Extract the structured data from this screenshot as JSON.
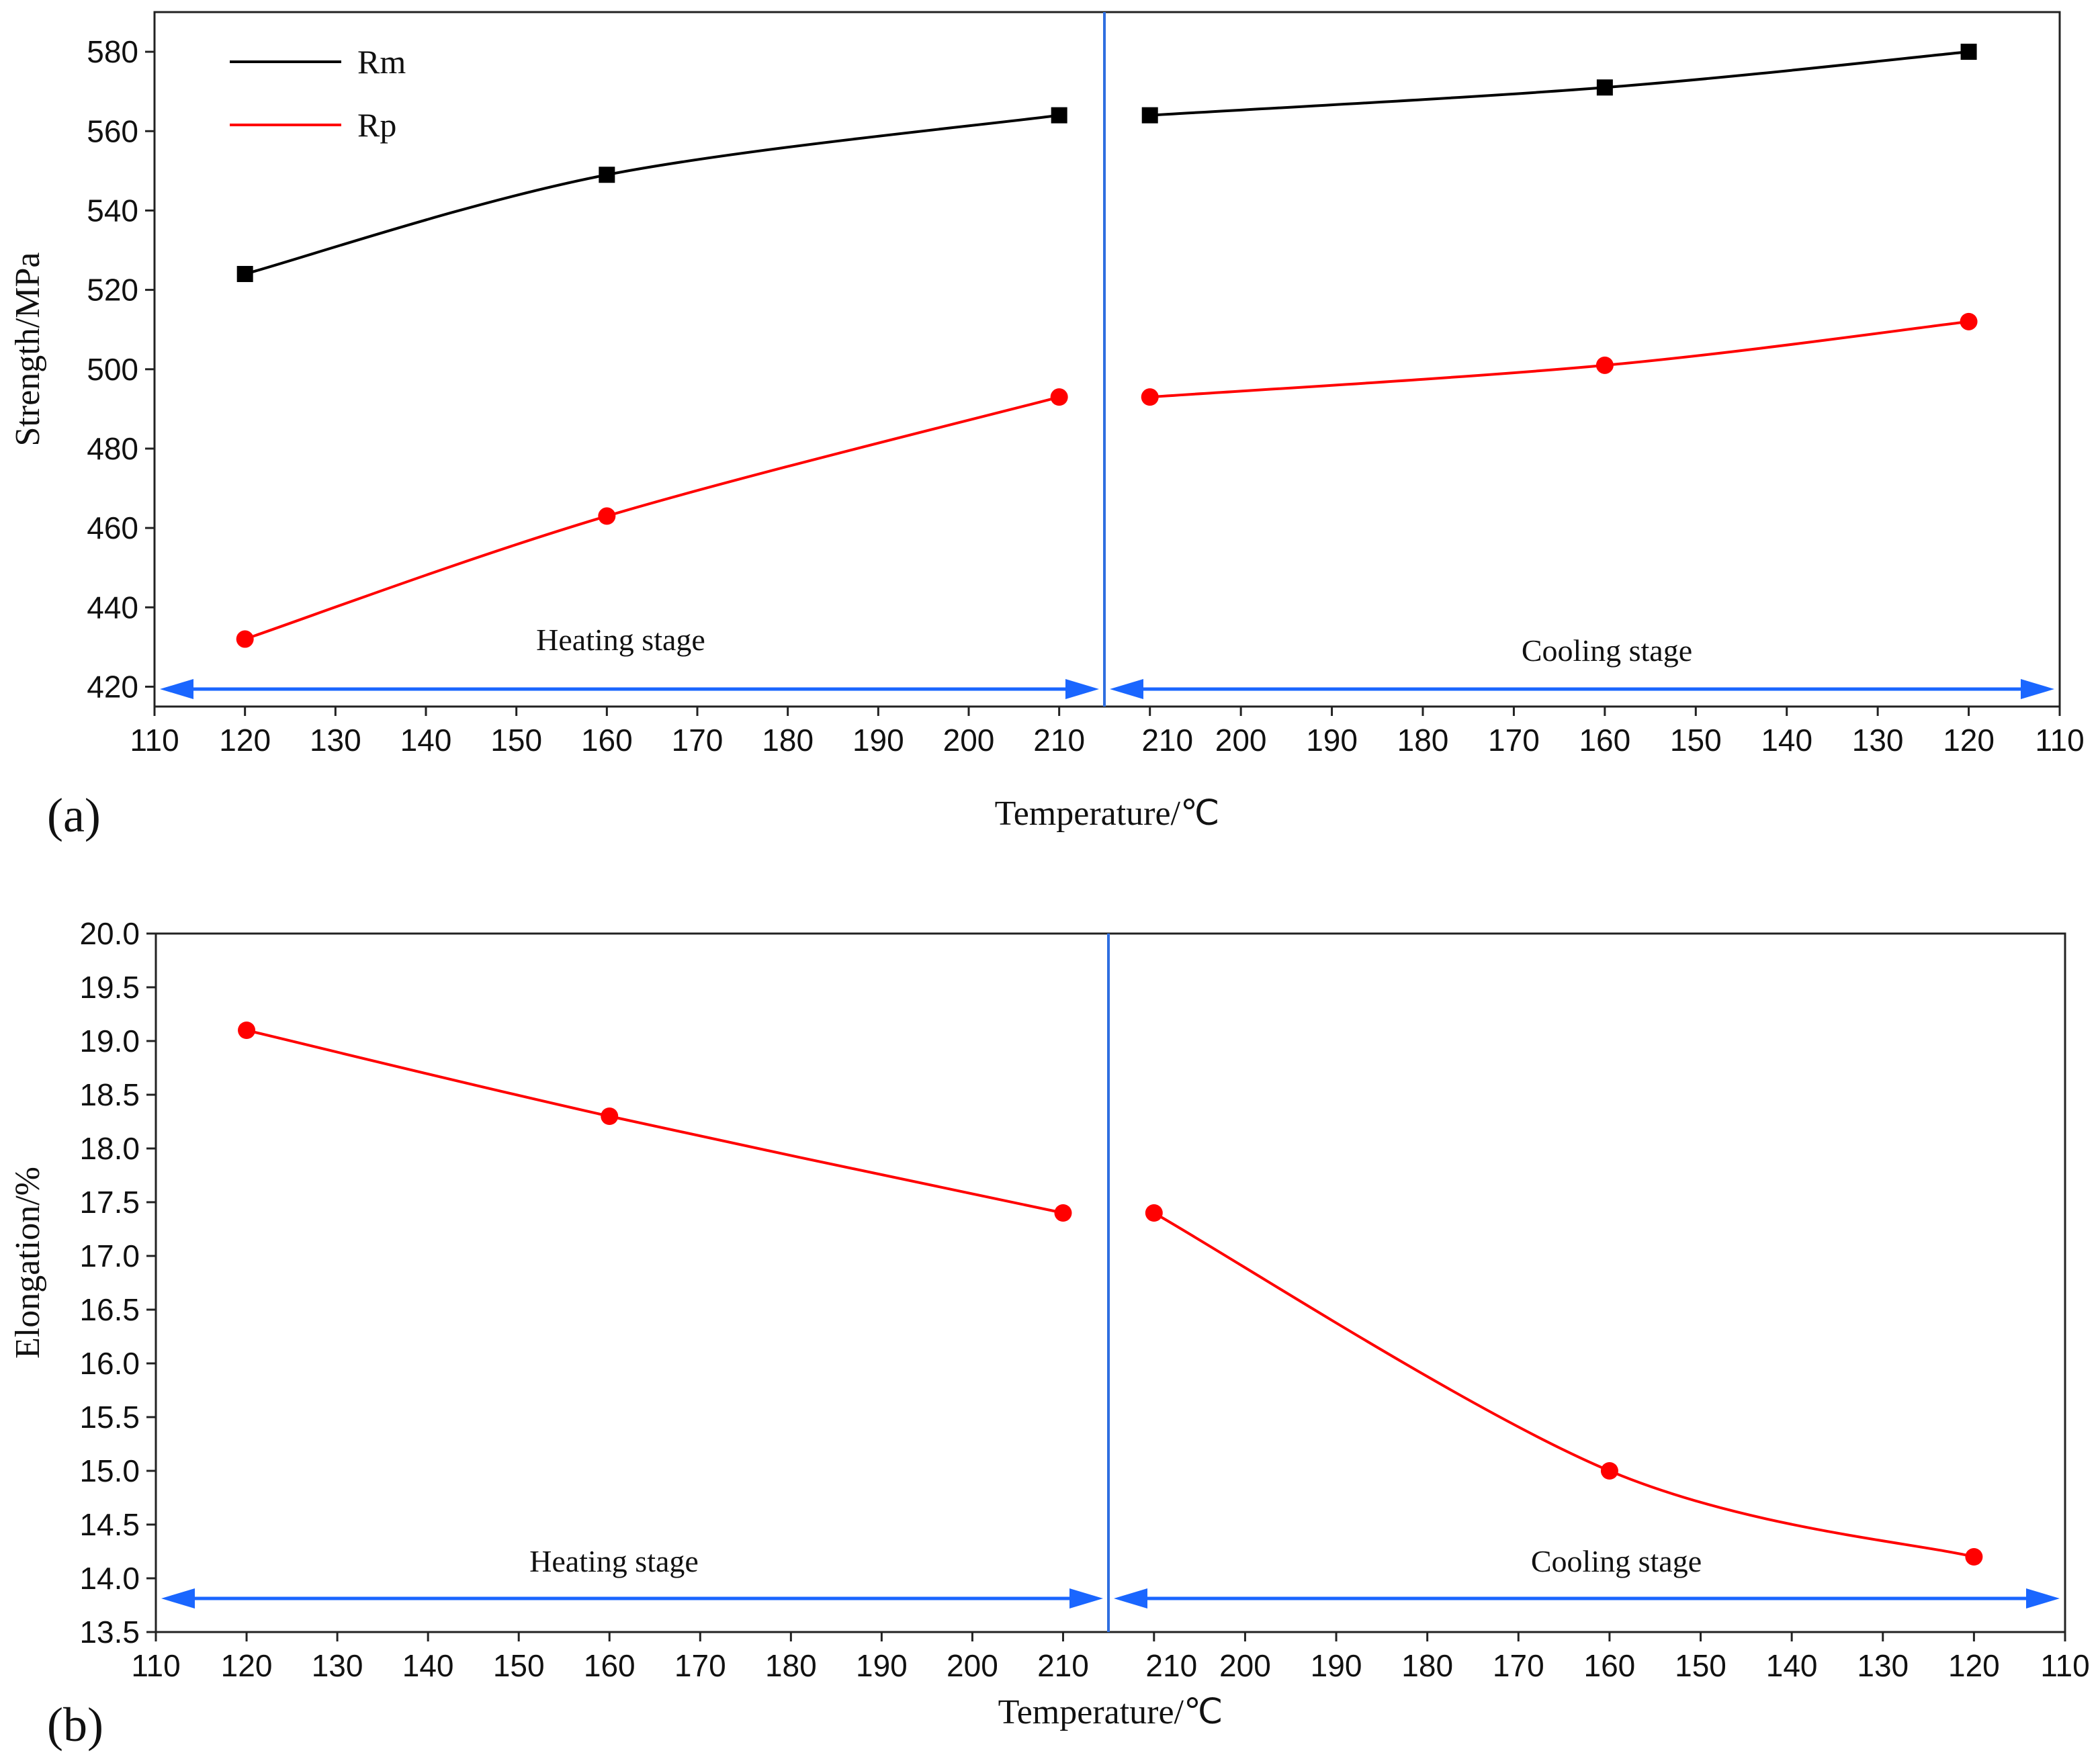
{
  "chart_data": [
    {
      "type": "line",
      "panel_label": "(a)",
      "xlabel": "Temperature/℃",
      "ylabel": "Strength/MPa",
      "ylim": [
        415,
        590
      ],
      "yticks": [
        420,
        440,
        460,
        480,
        500,
        520,
        540,
        560,
        580
      ],
      "x_axis_ticks_heating": [
        110,
        120,
        130,
        140,
        150,
        160,
        170,
        180,
        190,
        200,
        210
      ],
      "x_axis_ticks_cooling": [
        210,
        200,
        190,
        180,
        170,
        160,
        150,
        140,
        130,
        120,
        110
      ],
      "stage_labels": {
        "heating": "Heating stage",
        "cooling": "Cooling stage"
      },
      "legend_position": "top-left",
      "series": [
        {
          "name": "Rm",
          "color": "#000000",
          "marker": "square",
          "heating": {
            "x": [
              120,
              160,
              210
            ],
            "y": [
              524,
              549,
              564
            ]
          },
          "cooling": {
            "x": [
              210,
              160,
              120
            ],
            "y": [
              564,
              571,
              580
            ]
          }
        },
        {
          "name": "Rp",
          "color": "#ff0000",
          "marker": "circle",
          "heating": {
            "x": [
              120,
              160,
              210
            ],
            "y": [
              432,
              463,
              493
            ]
          },
          "cooling": {
            "x": [
              210,
              160,
              120
            ],
            "y": [
              493,
              501,
              512
            ]
          }
        }
      ]
    },
    {
      "type": "line",
      "panel_label": "(b)",
      "xlabel": "Temperature/℃",
      "ylabel": "Elongation/%",
      "ylim": [
        13.5,
        20.0
      ],
      "yticks": [
        13.5,
        14.0,
        14.5,
        15.0,
        15.5,
        16.0,
        16.5,
        17.0,
        17.5,
        18.0,
        18.5,
        19.0,
        19.5,
        20.0
      ],
      "x_axis_ticks_heating": [
        110,
        120,
        130,
        140,
        150,
        160,
        170,
        180,
        190,
        200,
        210
      ],
      "x_axis_ticks_cooling": [
        210,
        200,
        190,
        180,
        170,
        160,
        150,
        140,
        130,
        120,
        110
      ],
      "stage_labels": {
        "heating": "Heating stage",
        "cooling": "Cooling stage"
      },
      "series": [
        {
          "name": "Elongation",
          "color": "#ff0000",
          "marker": "circle",
          "heating": {
            "x": [
              120,
              160,
              210
            ],
            "y": [
              19.1,
              18.3,
              17.4
            ]
          },
          "cooling": {
            "x": [
              210,
              160,
              120
            ],
            "y": [
              17.4,
              15.0,
              14.2
            ]
          }
        }
      ]
    }
  ]
}
